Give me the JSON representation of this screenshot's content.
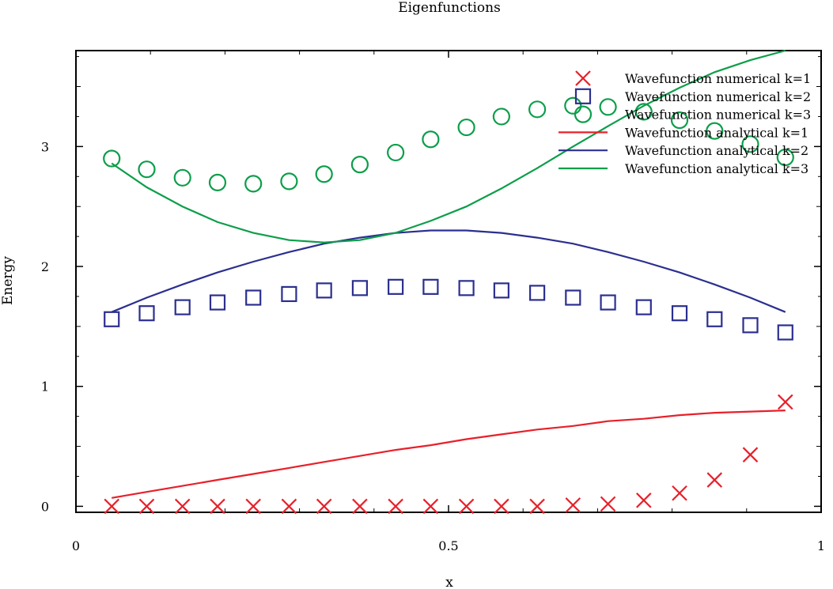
{
  "chart_data": {
    "type": "scatter",
    "title": "Eigenfunctions",
    "xlabel": "x",
    "ylabel": "Energy",
    "xlim": [
      0,
      1
    ],
    "ylim": [
      -0.05,
      3.8
    ],
    "xticks": [
      0,
      0.5,
      1
    ],
    "xtick_labels": [
      "0",
      "0.5",
      "1"
    ],
    "yticks": [
      0,
      1,
      2,
      3
    ],
    "ytick_labels": [
      "0",
      "1",
      "2",
      "3"
    ],
    "grid": false,
    "legend_position": "top-right",
    "series": [
      {
        "name": "Wavefunction numerical k=1",
        "kind": "marker",
        "marker": "cross",
        "color": "#e8202a",
        "x": [
          0.048,
          0.095,
          0.143,
          0.19,
          0.238,
          0.286,
          0.333,
          0.381,
          0.429,
          0.476,
          0.524,
          0.571,
          0.619,
          0.667,
          0.714,
          0.762,
          0.81,
          0.857,
          0.905,
          0.952
        ],
        "y": [
          0,
          0,
          0,
          0,
          0,
          0,
          0,
          0,
          0,
          0,
          0,
          0,
          0,
          0.01,
          0.02,
          0.05,
          0.11,
          0.22,
          0.43,
          0.87
        ]
      },
      {
        "name": "Wavefunction numerical k=2",
        "kind": "marker",
        "marker": "square",
        "color": "#2b2f8f",
        "x": [
          0.048,
          0.095,
          0.143,
          0.19,
          0.238,
          0.286,
          0.333,
          0.381,
          0.429,
          0.476,
          0.524,
          0.571,
          0.619,
          0.667,
          0.714,
          0.762,
          0.81,
          0.857,
          0.905,
          0.952
        ],
        "y": [
          1.56,
          1.61,
          1.66,
          1.7,
          1.74,
          1.77,
          1.8,
          1.82,
          1.83,
          1.83,
          1.82,
          1.8,
          1.78,
          1.74,
          1.7,
          1.66,
          1.61,
          1.56,
          1.51,
          1.45
        ]
      },
      {
        "name": "Wavefunction numerical k=3",
        "kind": "marker",
        "marker": "circle",
        "color": "#0c9e4a",
        "x": [
          0.048,
          0.095,
          0.143,
          0.19,
          0.238,
          0.286,
          0.333,
          0.381,
          0.429,
          0.476,
          0.524,
          0.571,
          0.619,
          0.667,
          0.714,
          0.762,
          0.81,
          0.857,
          0.905,
          0.952
        ],
        "y": [
          2.9,
          2.81,
          2.74,
          2.7,
          2.69,
          2.71,
          2.77,
          2.85,
          2.95,
          3.06,
          3.16,
          3.25,
          3.31,
          3.34,
          3.33,
          3.29,
          3.22,
          3.13,
          3.02,
          2.91
        ]
      },
      {
        "name": "Wavefunction analytical k=1",
        "kind": "line",
        "color": "#e8202a",
        "x": [
          0.048,
          0.095,
          0.143,
          0.19,
          0.238,
          0.286,
          0.333,
          0.381,
          0.429,
          0.476,
          0.524,
          0.571,
          0.619,
          0.667,
          0.714,
          0.762,
          0.81,
          0.857,
          0.905,
          0.952
        ],
        "y": [
          0.07,
          0.12,
          0.17,
          0.22,
          0.27,
          0.32,
          0.37,
          0.42,
          0.47,
          0.51,
          0.56,
          0.6,
          0.64,
          0.67,
          0.71,
          0.73,
          0.76,
          0.78,
          0.79,
          0.8
        ]
      },
      {
        "name": "Wavefunction analytical k=2",
        "kind": "line",
        "color": "#2b2f8f",
        "x": [
          0.048,
          0.095,
          0.143,
          0.19,
          0.238,
          0.286,
          0.333,
          0.381,
          0.429,
          0.476,
          0.524,
          0.571,
          0.619,
          0.667,
          0.714,
          0.762,
          0.81,
          0.857,
          0.905,
          0.952
        ],
        "y": [
          1.62,
          1.74,
          1.85,
          1.95,
          2.04,
          2.12,
          2.19,
          2.24,
          2.28,
          2.3,
          2.3,
          2.28,
          2.24,
          2.19,
          2.12,
          2.04,
          1.95,
          1.85,
          1.74,
          1.62
        ]
      },
      {
        "name": "Wavefunction analytical k=3",
        "kind": "line",
        "color": "#0c9e4a",
        "x": [
          0.048,
          0.095,
          0.143,
          0.19,
          0.238,
          0.286,
          0.333,
          0.381,
          0.429,
          0.476,
          0.524,
          0.571,
          0.619,
          0.667,
          0.714,
          0.762,
          0.81,
          0.857,
          0.905,
          0.952
        ],
        "y": [
          2.86,
          2.66,
          2.5,
          2.37,
          2.28,
          2.22,
          2.2,
          2.22,
          2.28,
          2.38,
          2.5,
          2.65,
          2.82,
          3.0,
          3.17,
          3.34,
          3.49,
          3.62,
          3.72,
          3.8
        ]
      }
    ]
  }
}
